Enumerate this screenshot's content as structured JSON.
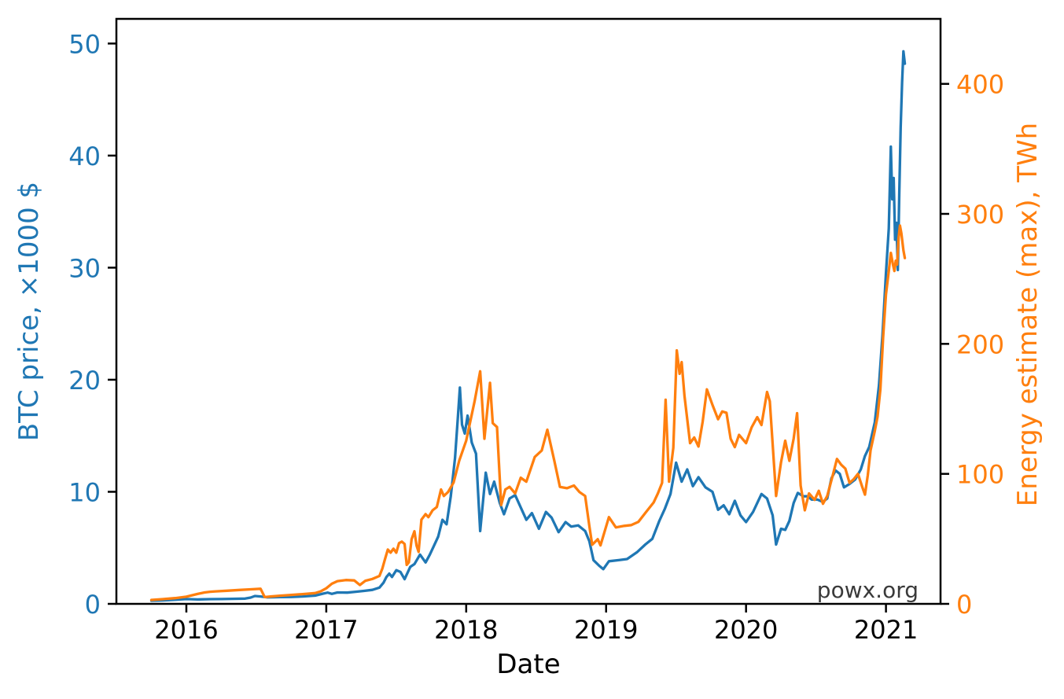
{
  "chart_data": {
    "type": "line",
    "title": "",
    "xlabel": "Date",
    "grid": false,
    "legend": "none",
    "xlim": [
      2015.5,
      2021.39
    ],
    "x_ticks": [
      2016,
      2017,
      2018,
      2019,
      2020,
      2021
    ],
    "left_axis": {
      "label": "BTC price, ×1000 $",
      "color": "#1f77b4",
      "ticks": [
        0,
        10,
        20,
        30,
        40,
        50
      ],
      "lim": [
        0,
        52.2
      ]
    },
    "right_axis": {
      "label": "Energy estimate (max), TWh",
      "color": "#ff7f0e",
      "ticks": [
        0,
        100,
        200,
        300,
        400
      ],
      "lim": [
        0,
        450
      ]
    },
    "annotations": [
      {
        "text": "powx.org",
        "position": "bottom-right"
      }
    ],
    "series": [
      {
        "name": "BTC price, ×1000 $",
        "axis": "left",
        "color": "#1f77b4",
        "points": [
          [
            2015.75,
            0.28
          ],
          [
            2015.83,
            0.31
          ],
          [
            2015.92,
            0.37
          ],
          [
            2016.0,
            0.43
          ],
          [
            2016.08,
            0.39
          ],
          [
            2016.17,
            0.42
          ],
          [
            2016.25,
            0.43
          ],
          [
            2016.33,
            0.45
          ],
          [
            2016.42,
            0.47
          ],
          [
            2016.46,
            0.56
          ],
          [
            2016.49,
            0.7
          ],
          [
            2016.53,
            0.66
          ],
          [
            2016.58,
            0.58
          ],
          [
            2016.67,
            0.61
          ],
          [
            2016.75,
            0.62
          ],
          [
            2016.83,
            0.66
          ],
          [
            2016.92,
            0.74
          ],
          [
            2016.98,
            0.92
          ],
          [
            2017.01,
            1.0
          ],
          [
            2017.04,
            0.89
          ],
          [
            2017.08,
            1.02
          ],
          [
            2017.15,
            1.0
          ],
          [
            2017.21,
            1.08
          ],
          [
            2017.27,
            1.16
          ],
          [
            2017.33,
            1.25
          ],
          [
            2017.38,
            1.45
          ],
          [
            2017.41,
            1.9
          ],
          [
            2017.43,
            2.4
          ],
          [
            2017.45,
            2.7
          ],
          [
            2017.47,
            2.4
          ],
          [
            2017.5,
            3.0
          ],
          [
            2017.53,
            2.85
          ],
          [
            2017.56,
            2.2
          ],
          [
            2017.6,
            3.3
          ],
          [
            2017.63,
            3.55
          ],
          [
            2017.67,
            4.4
          ],
          [
            2017.71,
            3.7
          ],
          [
            2017.74,
            4.4
          ],
          [
            2017.77,
            5.2
          ],
          [
            2017.8,
            6.0
          ],
          [
            2017.83,
            7.5
          ],
          [
            2017.86,
            7.1
          ],
          [
            2017.89,
            9.6
          ],
          [
            2017.92,
            13.0
          ],
          [
            2017.94,
            16.5
          ],
          [
            2017.955,
            19.3
          ],
          [
            2017.97,
            16.0
          ],
          [
            2017.99,
            15.2
          ],
          [
            2018.01,
            16.8
          ],
          [
            2018.04,
            14.4
          ],
          [
            2018.07,
            13.4
          ],
          [
            2018.1,
            6.5
          ],
          [
            2018.14,
            11.7
          ],
          [
            2018.17,
            9.8
          ],
          [
            2018.2,
            10.9
          ],
          [
            2018.24,
            9.0
          ],
          [
            2018.27,
            8.0
          ],
          [
            2018.31,
            9.4
          ],
          [
            2018.35,
            9.7
          ],
          [
            2018.39,
            8.6
          ],
          [
            2018.43,
            7.5
          ],
          [
            2018.47,
            8.1
          ],
          [
            2018.52,
            6.7
          ],
          [
            2018.57,
            8.2
          ],
          [
            2018.61,
            7.7
          ],
          [
            2018.66,
            6.4
          ],
          [
            2018.71,
            7.3
          ],
          [
            2018.75,
            6.9
          ],
          [
            2018.8,
            7.0
          ],
          [
            2018.85,
            6.5
          ],
          [
            2018.88,
            5.6
          ],
          [
            2018.91,
            3.9
          ],
          [
            2018.95,
            3.4
          ],
          [
            2018.98,
            3.1
          ],
          [
            2019.02,
            3.8
          ],
          [
            2019.09,
            3.9
          ],
          [
            2019.15,
            4.0
          ],
          [
            2019.22,
            4.6
          ],
          [
            2019.28,
            5.3
          ],
          [
            2019.33,
            5.8
          ],
          [
            2019.38,
            7.4
          ],
          [
            2019.42,
            8.5
          ],
          [
            2019.46,
            9.8
          ],
          [
            2019.5,
            12.6
          ],
          [
            2019.54,
            10.9
          ],
          [
            2019.58,
            12.0
          ],
          [
            2019.62,
            10.5
          ],
          [
            2019.66,
            11.3
          ],
          [
            2019.71,
            10.4
          ],
          [
            2019.76,
            10.0
          ],
          [
            2019.8,
            8.4
          ],
          [
            2019.84,
            8.8
          ],
          [
            2019.88,
            8.0
          ],
          [
            2019.92,
            9.2
          ],
          [
            2019.96,
            7.9
          ],
          [
            2020.0,
            7.3
          ],
          [
            2020.05,
            8.2
          ],
          [
            2020.11,
            9.8
          ],
          [
            2020.15,
            9.4
          ],
          [
            2020.19,
            7.9
          ],
          [
            2020.215,
            5.3
          ],
          [
            2020.25,
            6.7
          ],
          [
            2020.28,
            6.6
          ],
          [
            2020.31,
            7.4
          ],
          [
            2020.34,
            9.0
          ],
          [
            2020.37,
            9.9
          ],
          [
            2020.41,
            9.6
          ],
          [
            2020.44,
            9.6
          ],
          [
            2020.47,
            9.3
          ],
          [
            2020.51,
            9.3
          ],
          [
            2020.55,
            9.1
          ],
          [
            2020.58,
            9.4
          ],
          [
            2020.61,
            11.2
          ],
          [
            2020.64,
            11.9
          ],
          [
            2020.67,
            11.6
          ],
          [
            2020.7,
            10.4
          ],
          [
            2020.74,
            10.7
          ],
          [
            2020.78,
            11.1
          ],
          [
            2020.82,
            12.0
          ],
          [
            2020.85,
            13.2
          ],
          [
            2020.88,
            14.0
          ],
          [
            2020.92,
            16.2
          ],
          [
            2020.95,
            19.5
          ],
          [
            2020.975,
            24.0
          ],
          [
            2021.0,
            29.5
          ],
          [
            2021.02,
            33.5
          ],
          [
            2021.035,
            40.8
          ],
          [
            2021.045,
            36.1
          ],
          [
            2021.055,
            38.0
          ],
          [
            2021.065,
            32.5
          ],
          [
            2021.075,
            34.0
          ],
          [
            2021.085,
            29.8
          ],
          [
            2021.095,
            36.5
          ],
          [
            2021.105,
            42.5
          ],
          [
            2021.115,
            46.5
          ],
          [
            2021.125,
            49.3
          ],
          [
            2021.135,
            48.2
          ]
        ]
      },
      {
        "name": "Energy estimate (max), TWh",
        "axis": "right",
        "color": "#ff7f0e",
        "points": [
          [
            2015.75,
            3.0
          ],
          [
            2015.83,
            3.6
          ],
          [
            2015.92,
            4.4
          ],
          [
            2016.0,
            5.5
          ],
          [
            2016.04,
            6.6
          ],
          [
            2016.08,
            7.6
          ],
          [
            2016.13,
            8.8
          ],
          [
            2016.17,
            9.3
          ],
          [
            2016.21,
            9.6
          ],
          [
            2016.29,
            10.1
          ],
          [
            2016.38,
            10.7
          ],
          [
            2016.46,
            11.2
          ],
          [
            2016.53,
            11.6
          ],
          [
            2016.56,
            5.2
          ],
          [
            2016.6,
            5.6
          ],
          [
            2016.67,
            6.3
          ],
          [
            2016.75,
            6.9
          ],
          [
            2016.83,
            7.5
          ],
          [
            2016.92,
            8.3
          ],
          [
            2016.96,
            9.6
          ],
          [
            2017.0,
            12.0
          ],
          [
            2017.04,
            15.5
          ],
          [
            2017.08,
            17.5
          ],
          [
            2017.14,
            18.3
          ],
          [
            2017.2,
            18.0
          ],
          [
            2017.24,
            14.5
          ],
          [
            2017.28,
            17.8
          ],
          [
            2017.33,
            19.2
          ],
          [
            2017.38,
            21.5
          ],
          [
            2017.4,
            27.0
          ],
          [
            2017.42,
            34.5
          ],
          [
            2017.44,
            41.8
          ],
          [
            2017.46,
            39.4
          ],
          [
            2017.48,
            42.4
          ],
          [
            2017.5,
            39.4
          ],
          [
            2017.52,
            46.7
          ],
          [
            2017.54,
            47.9
          ],
          [
            2017.56,
            46.0
          ],
          [
            2017.575,
            30.0
          ],
          [
            2017.59,
            32.0
          ],
          [
            2017.61,
            49.7
          ],
          [
            2017.63,
            55.8
          ],
          [
            2017.645,
            44.8
          ],
          [
            2017.66,
            40.0
          ],
          [
            2017.68,
            64.8
          ],
          [
            2017.71,
            69.0
          ],
          [
            2017.73,
            66.7
          ],
          [
            2017.76,
            72.0
          ],
          [
            2017.79,
            74.5
          ],
          [
            2017.82,
            88.0
          ],
          [
            2017.84,
            83.0
          ],
          [
            2017.87,
            86.0
          ],
          [
            2017.91,
            93.3
          ],
          [
            2017.95,
            110.0
          ],
          [
            2018.0,
            125.5
          ],
          [
            2018.06,
            155.8
          ],
          [
            2018.1,
            178.9
          ],
          [
            2018.13,
            127.0
          ],
          [
            2018.17,
            170.0
          ],
          [
            2018.19,
            139.0
          ],
          [
            2018.22,
            136.0
          ],
          [
            2018.25,
            76.0
          ],
          [
            2018.28,
            88.0
          ],
          [
            2018.31,
            90.0
          ],
          [
            2018.35,
            85.0
          ],
          [
            2018.39,
            97.0
          ],
          [
            2018.43,
            94.0
          ],
          [
            2018.49,
            113.0
          ],
          [
            2018.54,
            118.0
          ],
          [
            2018.58,
            134.0
          ],
          [
            2018.63,
            110.0
          ],
          [
            2018.67,
            90.0
          ],
          [
            2018.72,
            89.0
          ],
          [
            2018.77,
            91.0
          ],
          [
            2018.81,
            86.0
          ],
          [
            2018.85,
            83.0
          ],
          [
            2018.88,
            60.0
          ],
          [
            2018.9,
            45.5
          ],
          [
            2018.94,
            49.7
          ],
          [
            2018.96,
            45.0
          ],
          [
            2019.02,
            66.7
          ],
          [
            2019.07,
            58.8
          ],
          [
            2019.13,
            60.0
          ],
          [
            2019.18,
            60.6
          ],
          [
            2019.23,
            63.0
          ],
          [
            2019.28,
            69.9
          ],
          [
            2019.34,
            78.0
          ],
          [
            2019.37,
            85.0
          ],
          [
            2019.4,
            93.0
          ],
          [
            2019.425,
            157.0
          ],
          [
            2019.45,
            94.0
          ],
          [
            2019.48,
            120.0
          ],
          [
            2019.505,
            195.0
          ],
          [
            2019.525,
            177.0
          ],
          [
            2019.54,
            186.0
          ],
          [
            2019.56,
            160.0
          ],
          [
            2019.6,
            123.6
          ],
          [
            2019.63,
            128.0
          ],
          [
            2019.66,
            121.0
          ],
          [
            2019.69,
            140.0
          ],
          [
            2019.72,
            165.0
          ],
          [
            2019.76,
            153.0
          ],
          [
            2019.8,
            142.0
          ],
          [
            2019.83,
            148.0
          ],
          [
            2019.86,
            147.0
          ],
          [
            2019.89,
            127.0
          ],
          [
            2019.92,
            120.6
          ],
          [
            2019.95,
            130.0
          ],
          [
            2020.0,
            123.6
          ],
          [
            2020.04,
            135.8
          ],
          [
            2020.08,
            143.6
          ],
          [
            2020.11,
            137.6
          ],
          [
            2020.15,
            163.0
          ],
          [
            2020.17,
            155.8
          ],
          [
            2020.215,
            83.0
          ],
          [
            2020.25,
            109.0
          ],
          [
            2020.28,
            125.5
          ],
          [
            2020.31,
            110.0
          ],
          [
            2020.34,
            127.0
          ],
          [
            2020.365,
            146.7
          ],
          [
            2020.39,
            91.0
          ],
          [
            2020.42,
            72.0
          ],
          [
            2020.45,
            85.0
          ],
          [
            2020.49,
            80.0
          ],
          [
            2020.52,
            87.0
          ],
          [
            2020.55,
            77.0
          ],
          [
            2020.58,
            83.0
          ],
          [
            2020.62,
            99.0
          ],
          [
            2020.65,
            111.5
          ],
          [
            2020.68,
            107.0
          ],
          [
            2020.71,
            104.0
          ],
          [
            2020.74,
            93.0
          ],
          [
            2020.77,
            96.0
          ],
          [
            2020.8,
            100.0
          ],
          [
            2020.83,
            90.0
          ],
          [
            2020.85,
            84.0
          ],
          [
            2020.87,
            99.0
          ],
          [
            2020.89,
            118.0
          ],
          [
            2020.92,
            133.0
          ],
          [
            2020.94,
            144.0
          ],
          [
            2020.96,
            165.0
          ],
          [
            2020.98,
            205.0
          ],
          [
            2021.0,
            238.0
          ],
          [
            2021.02,
            256.0
          ],
          [
            2021.035,
            270.0
          ],
          [
            2021.05,
            261.0
          ],
          [
            2021.06,
            256.0
          ],
          [
            2021.07,
            264.0
          ],
          [
            2021.08,
            261.0
          ],
          [
            2021.09,
            281.0
          ],
          [
            2021.1,
            291.0
          ],
          [
            2021.11,
            285.0
          ],
          [
            2021.125,
            272.0
          ],
          [
            2021.135,
            266.0
          ]
        ]
      }
    ]
  }
}
